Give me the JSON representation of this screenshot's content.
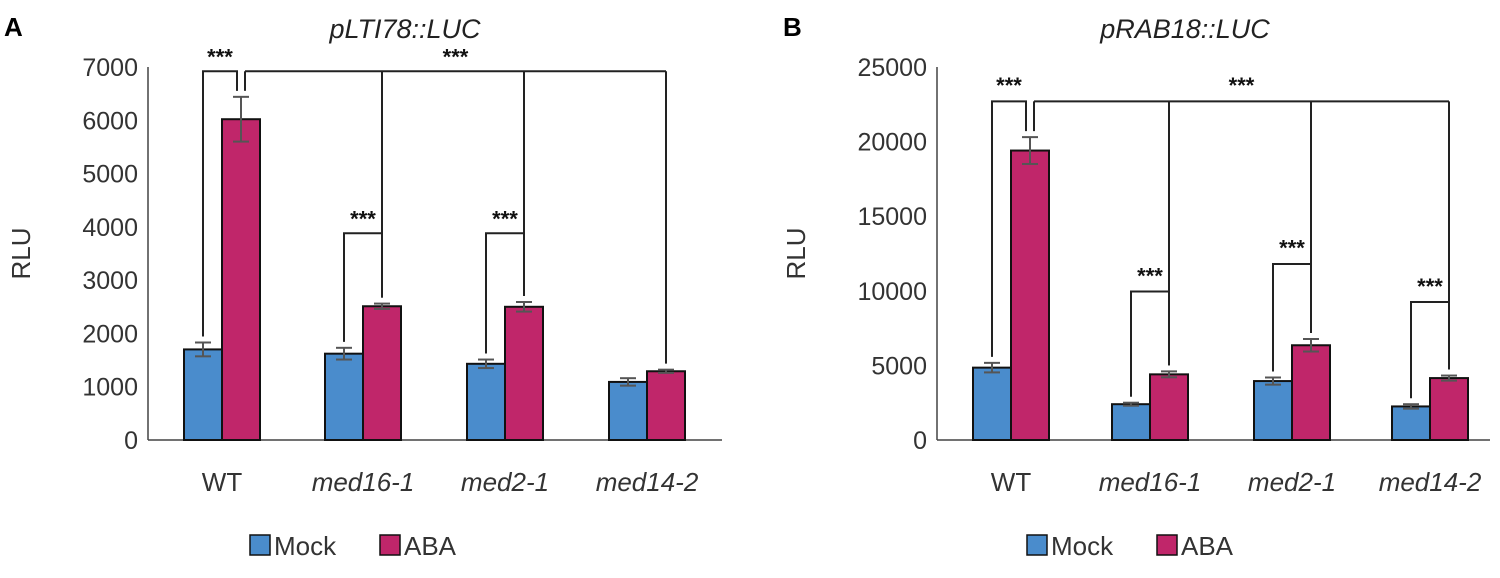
{
  "figure": {
    "panels": [
      "A",
      "B"
    ]
  },
  "chart_data": [
    {
      "type": "bar",
      "panel_label": "A",
      "title": "pLTI78::LUC",
      "xlabel": "",
      "ylabel": "RLU",
      "ylim": [
        0,
        7000
      ],
      "yticks": [
        0,
        1000,
        2000,
        3000,
        4000,
        5000,
        6000,
        7000
      ],
      "categories": [
        "WT",
        "med16-1",
        "med2-1",
        "med14-2"
      ],
      "series": [
        {
          "name": "Mock",
          "color": "#4a8ccc",
          "values": [
            1700,
            1620,
            1430,
            1090
          ],
          "errors": [
            130,
            110,
            80,
            70
          ]
        },
        {
          "name": "ABA",
          "color": "#c0266a",
          "values": [
            6020,
            2510,
            2500,
            1290
          ],
          "errors": [
            420,
            50,
            90,
            30
          ]
        }
      ],
      "significance": [
        {
          "label": "***",
          "type": "within",
          "category": 0,
          "bracket_y": 6920,
          "text_y": 7050
        },
        {
          "label": "***",
          "type": "within",
          "category": 1,
          "bracket_y": 3880,
          "text_y": 4010
        },
        {
          "label": "***",
          "type": "within",
          "category": 2,
          "bracket_y": 3880,
          "text_y": 4010
        },
        {
          "label": "***",
          "type": "across",
          "from_category": 0,
          "to_categories": [
            1,
            2,
            3
          ],
          "bracket_y": 6920,
          "text_y": 7050
        }
      ],
      "legend": {
        "position": "bottom",
        "entries": [
          "Mock",
          "ABA"
        ]
      }
    },
    {
      "type": "bar",
      "panel_label": "B",
      "title": "pRAB18::LUC",
      "xlabel": "",
      "ylabel": "RLU",
      "ylim": [
        0,
        25000
      ],
      "yticks": [
        0,
        5000,
        10000,
        15000,
        20000,
        25000
      ],
      "categories": [
        "WT",
        "med16-1",
        "med2-1",
        "med14-2"
      ],
      "series": [
        {
          "name": "Mock",
          "color": "#4a8ccc",
          "values": [
            4850,
            2400,
            3950,
            2250
          ],
          "errors": [
            320,
            100,
            240,
            150
          ]
        },
        {
          "name": "ABA",
          "color": "#c0266a",
          "values": [
            19400,
            4400,
            6350,
            4150
          ],
          "errors": [
            900,
            200,
            420,
            170
          ]
        }
      ],
      "significance": [
        {
          "label": "***",
          "type": "within",
          "category": 0,
          "bracket_y": 22700,
          "text_y": 23250
        },
        {
          "label": "***",
          "type": "within",
          "category": 1,
          "bracket_y": 9950,
          "text_y": 10500
        },
        {
          "label": "***",
          "type": "within",
          "category": 2,
          "bracket_y": 11800,
          "text_y": 12350
        },
        {
          "label": "***",
          "type": "within",
          "category": 3,
          "bracket_y": 9250,
          "text_y": 9800
        },
        {
          "label": "***",
          "type": "across",
          "from_category": 0,
          "to_categories": [
            1,
            2,
            3
          ],
          "bracket_y": 22700,
          "text_y": 23250
        }
      ],
      "legend": {
        "position": "bottom",
        "entries": [
          "Mock",
          "ABA"
        ]
      }
    }
  ]
}
